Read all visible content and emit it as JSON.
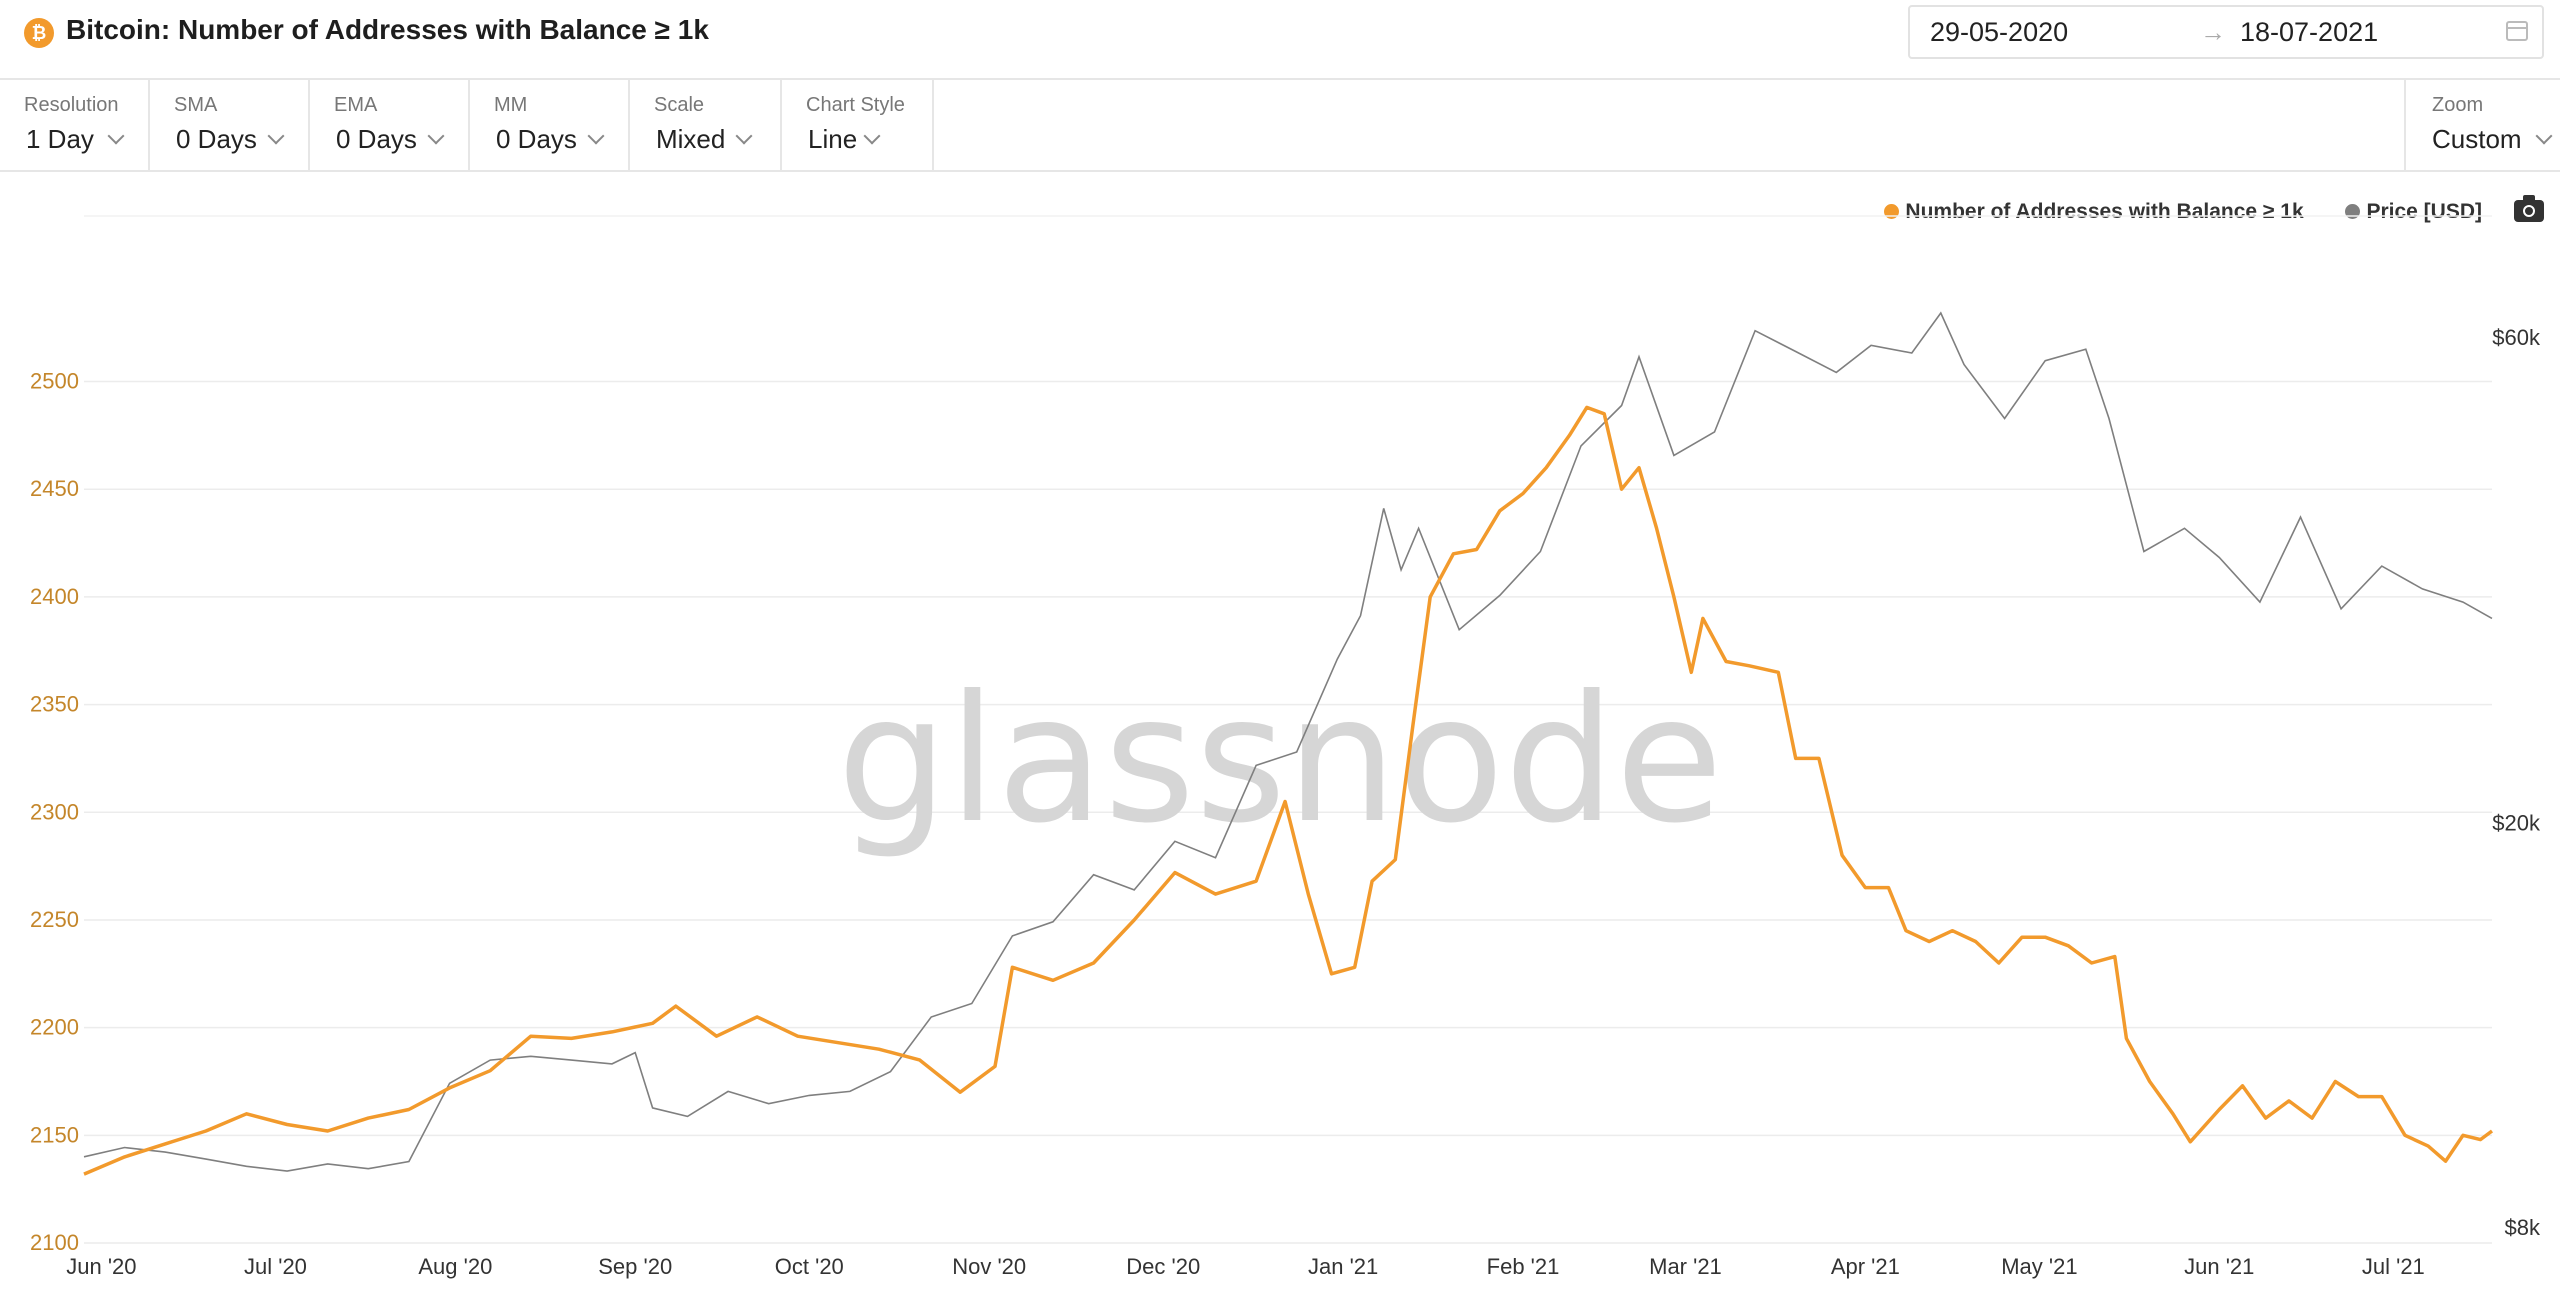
{
  "header": {
    "coin_symbol": "₿",
    "title": "Bitcoin: Number of Addresses with Balance ≥ 1k",
    "date_start": "29-05-2020",
    "date_arrow": "→",
    "date_end": "18-07-2021"
  },
  "controls": [
    {
      "label": "Resolution",
      "value": "1 Day"
    },
    {
      "label": "SMA",
      "value": "0 Days"
    },
    {
      "label": "EMA",
      "value": "0 Days"
    },
    {
      "label": "MM",
      "value": "0 Days"
    },
    {
      "label": "Scale",
      "value": "Mixed"
    },
    {
      "label": "Chart Style",
      "value": "Line"
    }
  ],
  "zoom": {
    "label": "Zoom",
    "value": "Custom"
  },
  "legend": [
    {
      "name": "Number of Addresses with Balance ≥ 1k",
      "color": "#f29a2c"
    },
    {
      "name": "Price [USD]",
      "color": "#7f7f7f"
    }
  ],
  "watermark": "glassnode",
  "chart_data": {
    "type": "line",
    "x_range": [
      "2020-05-29",
      "2021-07-18"
    ],
    "x_ticks": [
      "Jun '20",
      "Jul '20",
      "Aug '20",
      "Sep '20",
      "Oct '20",
      "Nov '20",
      "Dec '20",
      "Jan '21",
      "Feb '21",
      "Mar '21",
      "Apr '21",
      "May '21",
      "Jun '21",
      "Jul '21"
    ],
    "y_left": {
      "ticks": [
        2100,
        2150,
        2200,
        2250,
        2300,
        2350,
        2400,
        2450,
        2500
      ],
      "range": [
        2100,
        2505
      ],
      "color": "#c4862a"
    },
    "y_right": {
      "scale": "log",
      "ticks": [
        8000,
        20000,
        60000
      ],
      "tick_labels": [
        "$8k",
        "$20k",
        "$60k"
      ],
      "range": [
        8000,
        60000
      ]
    },
    "series": [
      {
        "name": "Number of Addresses with Balance ≥ 1k",
        "axis": "left",
        "color": "#f29a2c",
        "points": [
          [
            "2020-05-29",
            2132
          ],
          [
            "2020-06-05",
            2140
          ],
          [
            "2020-06-12",
            2146
          ],
          [
            "2020-06-19",
            2152
          ],
          [
            "2020-06-26",
            2160
          ],
          [
            "2020-07-03",
            2155
          ],
          [
            "2020-07-10",
            2152
          ],
          [
            "2020-07-17",
            2158
          ],
          [
            "2020-07-24",
            2162
          ],
          [
            "2020-07-31",
            2172
          ],
          [
            "2020-08-07",
            2180
          ],
          [
            "2020-08-14",
            2196
          ],
          [
            "2020-08-21",
            2195
          ],
          [
            "2020-08-28",
            2198
          ],
          [
            "2020-09-04",
            2202
          ],
          [
            "2020-09-08",
            2210
          ],
          [
            "2020-09-15",
            2196
          ],
          [
            "2020-09-22",
            2205
          ],
          [
            "2020-09-29",
            2196
          ],
          [
            "2020-10-06",
            2193
          ],
          [
            "2020-10-13",
            2190
          ],
          [
            "2020-10-20",
            2185
          ],
          [
            "2020-10-27",
            2170
          ],
          [
            "2020-11-02",
            2182
          ],
          [
            "2020-11-05",
            2228
          ],
          [
            "2020-11-12",
            2222
          ],
          [
            "2020-11-19",
            2230
          ],
          [
            "2020-11-26",
            2250
          ],
          [
            "2020-12-03",
            2272
          ],
          [
            "2020-12-10",
            2262
          ],
          [
            "2020-12-17",
            2268
          ],
          [
            "2020-12-22",
            2305
          ],
          [
            "2020-12-26",
            2262
          ],
          [
            "2020-12-30",
            2225
          ],
          [
            "2021-01-03",
            2228
          ],
          [
            "2021-01-06",
            2268
          ],
          [
            "2021-01-10",
            2278
          ],
          [
            "2021-01-13",
            2340
          ],
          [
            "2021-01-16",
            2400
          ],
          [
            "2021-01-20",
            2420
          ],
          [
            "2021-01-24",
            2422
          ],
          [
            "2021-01-28",
            2440
          ],
          [
            "2021-02-01",
            2448
          ],
          [
            "2021-02-05",
            2460
          ],
          [
            "2021-02-09",
            2475
          ],
          [
            "2021-02-12",
            2488
          ],
          [
            "2021-02-15",
            2485
          ],
          [
            "2021-02-18",
            2450
          ],
          [
            "2021-02-21",
            2460
          ],
          [
            "2021-02-24",
            2432
          ],
          [
            "2021-02-27",
            2400
          ],
          [
            "2021-03-02",
            2365
          ],
          [
            "2021-03-04",
            2390
          ],
          [
            "2021-03-08",
            2370
          ],
          [
            "2021-03-12",
            2368
          ],
          [
            "2021-03-17",
            2365
          ],
          [
            "2021-03-20",
            2325
          ],
          [
            "2021-03-24",
            2325
          ],
          [
            "2021-03-28",
            2280
          ],
          [
            "2021-04-01",
            2265
          ],
          [
            "2021-04-05",
            2265
          ],
          [
            "2021-04-08",
            2245
          ],
          [
            "2021-04-12",
            2240
          ],
          [
            "2021-04-16",
            2245
          ],
          [
            "2021-04-20",
            2240
          ],
          [
            "2021-04-24",
            2230
          ],
          [
            "2021-04-28",
            2242
          ],
          [
            "2021-05-02",
            2242
          ],
          [
            "2021-05-06",
            2238
          ],
          [
            "2021-05-10",
            2230
          ],
          [
            "2021-05-14",
            2233
          ],
          [
            "2021-05-16",
            2195
          ],
          [
            "2021-05-20",
            2175
          ],
          [
            "2021-05-24",
            2160
          ],
          [
            "2021-05-27",
            2147
          ],
          [
            "2021-06-01",
            2162
          ],
          [
            "2021-06-05",
            2173
          ],
          [
            "2021-06-09",
            2158
          ],
          [
            "2021-06-13",
            2166
          ],
          [
            "2021-06-17",
            2158
          ],
          [
            "2021-06-21",
            2175
          ],
          [
            "2021-06-25",
            2168
          ],
          [
            "2021-06-29",
            2168
          ],
          [
            "2021-07-03",
            2150
          ],
          [
            "2021-07-07",
            2145
          ],
          [
            "2021-07-10",
            2138
          ],
          [
            "2021-07-13",
            2150
          ],
          [
            "2021-07-16",
            2148
          ],
          [
            "2021-07-18",
            2152
          ]
        ]
      },
      {
        "name": "Price [USD]",
        "axis": "right",
        "color": "#7f7f7f",
        "points": [
          [
            "2020-05-29",
            9400
          ],
          [
            "2020-06-05",
            9600
          ],
          [
            "2020-06-12",
            9500
          ],
          [
            "2020-06-19",
            9350
          ],
          [
            "2020-06-26",
            9200
          ],
          [
            "2020-07-03",
            9100
          ],
          [
            "2020-07-10",
            9250
          ],
          [
            "2020-07-17",
            9150
          ],
          [
            "2020-07-24",
            9300
          ],
          [
            "2020-07-31",
            11100
          ],
          [
            "2020-08-07",
            11700
          ],
          [
            "2020-08-14",
            11800
          ],
          [
            "2020-08-21",
            11700
          ],
          [
            "2020-08-28",
            11600
          ],
          [
            "2020-09-01",
            11900
          ],
          [
            "2020-09-04",
            10500
          ],
          [
            "2020-09-10",
            10300
          ],
          [
            "2020-09-17",
            10900
          ],
          [
            "2020-09-24",
            10600
          ],
          [
            "2020-10-01",
            10800
          ],
          [
            "2020-10-08",
            10900
          ],
          [
            "2020-10-15",
            11400
          ],
          [
            "2020-10-22",
            12900
          ],
          [
            "2020-10-29",
            13300
          ],
          [
            "2020-11-05",
            15500
          ],
          [
            "2020-11-12",
            16000
          ],
          [
            "2020-11-19",
            17800
          ],
          [
            "2020-11-26",
            17200
          ],
          [
            "2020-12-03",
            19200
          ],
          [
            "2020-12-10",
            18500
          ],
          [
            "2020-12-17",
            22800
          ],
          [
            "2020-12-24",
            23500
          ],
          [
            "2020-12-31",
            29000
          ],
          [
            "2021-01-04",
            32000
          ],
          [
            "2021-01-08",
            40800
          ],
          [
            "2021-01-11",
            35500
          ],
          [
            "2021-01-14",
            39000
          ],
          [
            "2021-01-21",
            31000
          ],
          [
            "2021-01-28",
            33500
          ],
          [
            "2021-02-04",
            37000
          ],
          [
            "2021-02-11",
            47000
          ],
          [
            "2021-02-18",
            51500
          ],
          [
            "2021-02-21",
            57500
          ],
          [
            "2021-02-27",
            46000
          ],
          [
            "2021-03-06",
            48500
          ],
          [
            "2021-03-13",
            61000
          ],
          [
            "2021-03-20",
            58200
          ],
          [
            "2021-03-27",
            55500
          ],
          [
            "2021-04-02",
            59000
          ],
          [
            "2021-04-09",
            58000
          ],
          [
            "2021-04-14",
            63500
          ],
          [
            "2021-04-18",
            56500
          ],
          [
            "2021-04-25",
            50000
          ],
          [
            "2021-05-02",
            57000
          ],
          [
            "2021-05-09",
            58500
          ],
          [
            "2021-05-13",
            50000
          ],
          [
            "2021-05-19",
            37000
          ],
          [
            "2021-05-26",
            39000
          ],
          [
            "2021-06-01",
            36500
          ],
          [
            "2021-06-08",
            33000
          ],
          [
            "2021-06-15",
            40000
          ],
          [
            "2021-06-22",
            32500
          ],
          [
            "2021-06-29",
            35800
          ],
          [
            "2021-07-06",
            34000
          ],
          [
            "2021-07-13",
            33000
          ],
          [
            "2021-07-18",
            31800
          ]
        ]
      }
    ],
    "grid": true,
    "legend_position": "top-right"
  }
}
